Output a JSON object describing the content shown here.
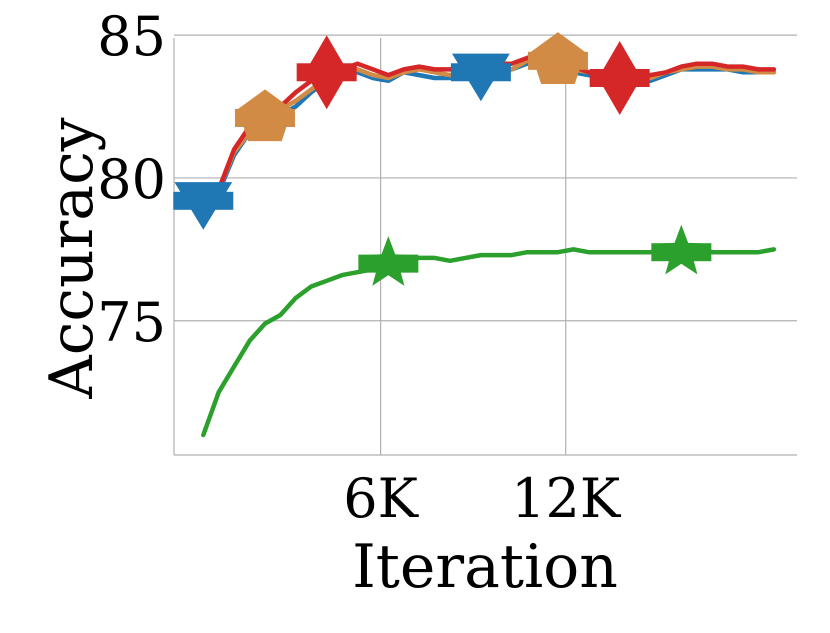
{
  "chart_data": {
    "type": "line",
    "title": "",
    "xlabel": "Iteration",
    "ylabel": "Accuracy",
    "xlim": [
      -700,
      19500
    ],
    "ylim": [
      70.3,
      84.9
    ],
    "xticks": [
      {
        "value": 6000,
        "label": "6K"
      },
      {
        "value": 12000,
        "label": "12K"
      }
    ],
    "yticks": [
      {
        "value": 75,
        "label": "75"
      },
      {
        "value": 80,
        "label": "80"
      },
      {
        "value": 85,
        "label": "85"
      }
    ],
    "grid": true,
    "legend": "none",
    "series": [
      {
        "color": "#1f77b4",
        "marker": "triangle-down",
        "x": [
          250,
          750,
          1250,
          1750,
          2250,
          2750,
          3250,
          3750,
          4250,
          4750,
          5250,
          5750,
          6250,
          6750,
          7250,
          7750,
          8250,
          8750,
          9250,
          9750,
          10250,
          10750,
          11250,
          11750,
          12250,
          12750,
          13250,
          13750,
          14250,
          14750,
          15250,
          15750,
          16250,
          16750,
          17250,
          17750,
          18250,
          18750
        ],
        "y": [
          79.2,
          79.5,
          80.8,
          81.6,
          82.0,
          82.2,
          82.5,
          83.0,
          83.4,
          83.6,
          83.7,
          83.5,
          83.4,
          83.7,
          83.6,
          83.5,
          83.5,
          83.7,
          83.7,
          83.8,
          83.8,
          84.0,
          84.2,
          84.0,
          83.7,
          83.6,
          83.5,
          83.4,
          83.5,
          83.4,
          83.6,
          83.8,
          83.8,
          83.8,
          83.8,
          83.7,
          83.7,
          83.7
        ],
        "markers_at": [
          250,
          9250
        ]
      },
      {
        "color": "#d28b45",
        "marker": "pentagon",
        "x": [
          250,
          750,
          1250,
          1750,
          2250,
          2750,
          3250,
          3750,
          4250,
          4750,
          5250,
          5750,
          6250,
          6750,
          7250,
          7750,
          8250,
          8750,
          9250,
          9750,
          10250,
          10750,
          11250,
          11750,
          12250,
          12750,
          13250,
          13750,
          14250,
          14750,
          15250,
          15750,
          16250,
          16750,
          17250,
          17750,
          18250,
          18750
        ],
        "y": [
          79.2,
          79.6,
          80.9,
          81.6,
          82.1,
          82.4,
          82.7,
          83.1,
          83.5,
          83.8,
          83.8,
          83.6,
          83.5,
          83.7,
          83.8,
          83.7,
          83.6,
          83.7,
          83.8,
          83.9,
          83.8,
          84.1,
          84.3,
          84.1,
          83.8,
          83.7,
          83.6,
          83.5,
          83.6,
          83.5,
          83.7,
          83.8,
          83.9,
          83.9,
          83.8,
          83.8,
          83.7,
          83.7
        ],
        "markers_at": [
          2250,
          11750
        ]
      },
      {
        "color": "#d62728",
        "marker": "diamond",
        "x": [
          250,
          750,
          1250,
          1750,
          2250,
          2750,
          3250,
          3750,
          4250,
          4750,
          5250,
          5750,
          6250,
          6750,
          7250,
          7750,
          8250,
          8750,
          9250,
          9750,
          10250,
          10750,
          11250,
          11750,
          12250,
          12750,
          13250,
          13750,
          14250,
          14750,
          15250,
          15750,
          16250,
          16750,
          17250,
          17750,
          18250,
          18750
        ],
        "y": [
          79.3,
          79.6,
          81.0,
          81.8,
          82.2,
          82.5,
          83.0,
          83.4,
          83.7,
          83.8,
          84.0,
          83.8,
          83.6,
          83.8,
          83.9,
          83.8,
          83.8,
          83.9,
          83.9,
          84.0,
          84.0,
          84.2,
          84.4,
          84.1,
          83.9,
          83.7,
          83.6,
          83.5,
          83.6,
          83.6,
          83.7,
          83.9,
          84.0,
          84.0,
          83.9,
          83.9,
          83.8,
          83.8
        ],
        "markers_at": [
          4250,
          13750
        ]
      },
      {
        "color": "#2ca02c",
        "marker": "star",
        "x": [
          250,
          750,
          1250,
          1750,
          2250,
          2750,
          3250,
          3750,
          4250,
          4750,
          5250,
          5750,
          6250,
          6750,
          7250,
          7750,
          8250,
          8750,
          9250,
          9750,
          10250,
          10750,
          11250,
          11750,
          12250,
          12750,
          13250,
          13750,
          14250,
          14750,
          15250,
          15750,
          16250,
          16750,
          17250,
          17750,
          18250,
          18750
        ],
        "y": [
          71.0,
          72.5,
          73.4,
          74.3,
          74.9,
          75.2,
          75.8,
          76.2,
          76.4,
          76.6,
          76.7,
          76.8,
          77.0,
          77.1,
          77.2,
          77.2,
          77.1,
          77.2,
          77.3,
          77.3,
          77.3,
          77.4,
          77.4,
          77.4,
          77.5,
          77.4,
          77.4,
          77.4,
          77.4,
          77.4,
          77.5,
          77.4,
          77.5,
          77.4,
          77.4,
          77.4,
          77.4,
          77.5
        ],
        "markers_at": [
          6250,
          15750
        ]
      }
    ]
  }
}
